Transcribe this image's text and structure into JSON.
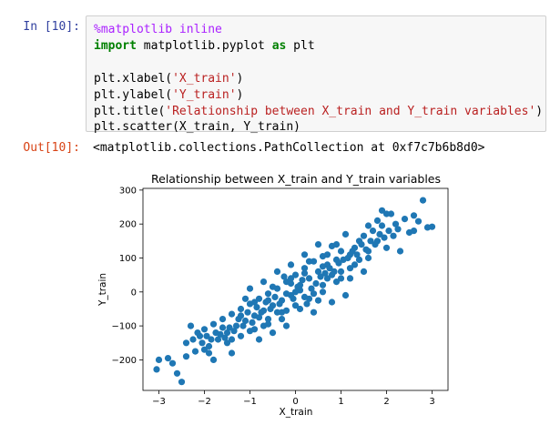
{
  "cell_in": {
    "prompt": "In [10]:",
    "code": {
      "magic": "%matplotlib inline",
      "import_kw": "import",
      "import_mod": " matplotlib.pyplot ",
      "as_kw": "as",
      "import_alias": " plt",
      "xlabel_pre": "plt.xlabel(",
      "xlabel_str": "'X_train'",
      "xlabel_post": ")",
      "ylabel_pre": "plt.ylabel(",
      "ylabel_str": "'Y_train'",
      "ylabel_post": ")",
      "title_pre": "plt.title(",
      "title_str": "'Relationship between X_train and Y_train variables'",
      "title_post": ")",
      "scatter": "plt.scatter(X_train, Y_train)"
    }
  },
  "cell_out": {
    "prompt": "Out[10]:",
    "text": "<matplotlib.collections.PathCollection at 0xf7c7b6b8d0>"
  },
  "colors": {
    "marker": "#1f77b4",
    "in_prompt": "#303f9f",
    "out_prompt": "#d84315"
  },
  "chart_data": {
    "type": "scatter",
    "title": "Relationship between X_train and Y_train variables",
    "xlabel": "X_train",
    "ylabel": "Y_train",
    "xlim": [
      -3.35,
      3.35
    ],
    "ylim": [
      -290,
      305
    ],
    "xticks": [
      "−3",
      "−2",
      "−1",
      "0",
      "1",
      "2",
      "3"
    ],
    "yticks": [
      "−200",
      "−100",
      "0",
      "100",
      "200",
      "300"
    ],
    "xtick_values": [
      -3,
      -2,
      -1,
      0,
      1,
      2,
      3
    ],
    "ytick_values": [
      -200,
      -100,
      0,
      100,
      200,
      300
    ],
    "grid": false,
    "points": [
      [
        2.8,
        270
      ],
      [
        3.0,
        192
      ],
      [
        2.7,
        208
      ],
      [
        2.6,
        225
      ],
      [
        2.4,
        215
      ],
      [
        2.2,
        200
      ],
      [
        2.1,
        230
      ],
      [
        1.9,
        240
      ],
      [
        1.8,
        210
      ],
      [
        1.7,
        180
      ],
      [
        1.5,
        165
      ],
      [
        1.6,
        195
      ],
      [
        1.4,
        150
      ],
      [
        1.3,
        130
      ],
      [
        1.2,
        110
      ],
      [
        1.1,
        170
      ],
      [
        1.0,
        120
      ],
      [
        0.9,
        95
      ],
      [
        0.8,
        135
      ],
      [
        0.7,
        80
      ],
      [
        0.6,
        105
      ],
      [
        0.5,
        60
      ],
      [
        0.4,
        90
      ],
      [
        0.3,
        40
      ],
      [
        0.2,
        70
      ],
      [
        0.1,
        20
      ],
      [
        0.0,
        50
      ],
      [
        -0.1,
        -10
      ],
      [
        -0.2,
        30
      ],
      [
        -0.3,
        -25
      ],
      [
        -0.4,
        10
      ],
      [
        -0.5,
        -40
      ],
      [
        -0.6,
        -5
      ],
      [
        -0.7,
        -55
      ],
      [
        -0.8,
        -20
      ],
      [
        -0.9,
        -70
      ],
      [
        -1.0,
        -35
      ],
      [
        -1.1,
        -85
      ],
      [
        -1.2,
        -50
      ],
      [
        -1.3,
        -100
      ],
      [
        -1.4,
        -65
      ],
      [
        -1.5,
        -120
      ],
      [
        -1.6,
        -80
      ],
      [
        -1.7,
        -140
      ],
      [
        -1.8,
        -95
      ],
      [
        -1.9,
        -160
      ],
      [
        -2.0,
        -110
      ],
      [
        -2.2,
        -175
      ],
      [
        -2.4,
        -150
      ],
      [
        -2.6,
        -240
      ],
      [
        -2.7,
        -210
      ],
      [
        -3.0,
        -200
      ],
      [
        -3.05,
        -228
      ],
      [
        -2.5,
        -265
      ],
      [
        1.5,
        60
      ],
      [
        1.2,
        40
      ],
      [
        0.9,
        30
      ],
      [
        0.6,
        0
      ],
      [
        0.3,
        -20
      ],
      [
        0.0,
        -40
      ],
      [
        -0.3,
        -60
      ],
      [
        -0.6,
        -80
      ],
      [
        -0.9,
        -110
      ],
      [
        -1.2,
        -130
      ],
      [
        -1.5,
        -150
      ],
      [
        0.5,
        140
      ],
      [
        0.2,
        110
      ],
      [
        -0.1,
        80
      ],
      [
        -0.4,
        60
      ],
      [
        -0.7,
        30
      ],
      [
        -1.0,
        10
      ],
      [
        1.8,
        150
      ],
      [
        2.0,
        130
      ],
      [
        2.3,
        120
      ],
      [
        1.6,
        100
      ],
      [
        0.8,
        -30
      ],
      [
        0.4,
        -60
      ],
      [
        -0.2,
        -100
      ],
      [
        -0.5,
        -120
      ],
      [
        -0.8,
        -140
      ],
      [
        1.0,
        60
      ],
      [
        1.3,
        80
      ],
      [
        0.7,
        40
      ],
      [
        -1.8,
        -200
      ],
      [
        -2.1,
        -130
      ],
      [
        -1.4,
        -180
      ],
      [
        -0.2,
        -5
      ],
      [
        0.1,
        5
      ],
      [
        0.2,
        -15
      ],
      [
        -0.1,
        25
      ],
      [
        0.05,
        15
      ],
      [
        -0.05,
        -20
      ],
      [
        0.15,
        35
      ],
      [
        0.35,
        10
      ],
      [
        -0.35,
        -35
      ],
      [
        0.45,
        25
      ],
      [
        -0.45,
        -15
      ],
      [
        0.55,
        45
      ],
      [
        -0.55,
        -50
      ],
      [
        0.65,
        55
      ],
      [
        -0.65,
        -30
      ],
      [
        0.75,
        70
      ],
      [
        -0.75,
        -60
      ],
      [
        0.85,
        60
      ],
      [
        -0.85,
        -45
      ],
      [
        0.95,
        85
      ],
      [
        -0.95,
        -90
      ],
      [
        1.05,
        95
      ],
      [
        -1.05,
        -60
      ],
      [
        1.15,
        100
      ],
      [
        -1.15,
        -100
      ],
      [
        1.25,
        120
      ],
      [
        -1.25,
        -80
      ],
      [
        1.35,
        110
      ],
      [
        -1.35,
        -115
      ],
      [
        1.45,
        140
      ],
      [
        -1.45,
        -105
      ],
      [
        1.55,
        125
      ],
      [
        -1.55,
        -135
      ],
      [
        1.65,
        150
      ],
      [
        -1.65,
        -125
      ],
      [
        1.75,
        140
      ],
      [
        -1.75,
        -120
      ],
      [
        1.85,
        170
      ],
      [
        -1.85,
        -140
      ],
      [
        1.95,
        160
      ],
      [
        -1.95,
        -130
      ],
      [
        2.05,
        180
      ],
      [
        -2.05,
        -150
      ],
      [
        2.15,
        165
      ],
      [
        -2.15,
        -120
      ],
      [
        2.25,
        185
      ],
      [
        -2.25,
        -140
      ],
      [
        2.5,
        175
      ],
      [
        -2.3,
        -100
      ],
      [
        0.25,
        -35
      ],
      [
        -0.25,
        45
      ],
      [
        0.4,
        -5
      ],
      [
        -0.4,
        -60
      ],
      [
        0.6,
        20
      ],
      [
        -0.6,
        -95
      ],
      [
        0.8,
        50
      ],
      [
        -0.8,
        -75
      ],
      [
        1.0,
        40
      ],
      [
        -1.0,
        -115
      ],
      [
        1.2,
        70
      ],
      [
        -1.2,
        -70
      ],
      [
        1.4,
        95
      ],
      [
        -1.4,
        -140
      ],
      [
        0.3,
        90
      ],
      [
        -0.3,
        -80
      ],
      [
        0.1,
        -50
      ],
      [
        -0.1,
        40
      ],
      [
        0.5,
        -25
      ],
      [
        -0.5,
        15
      ],
      [
        0.7,
        110
      ],
      [
        -0.7,
        -100
      ],
      [
        0.9,
        140
      ],
      [
        -0.9,
        -30
      ],
      [
        1.1,
        -10
      ],
      [
        -1.1,
        -20
      ],
      [
        0.0,
        0
      ],
      [
        0.2,
        55
      ],
      [
        -0.2,
        -55
      ],
      [
        0.6,
        75
      ],
      [
        -0.6,
        -25
      ],
      [
        1.6,
        120
      ],
      [
        -1.6,
        -105
      ],
      [
        1.9,
        195
      ],
      [
        -1.9,
        -180
      ],
      [
        2.0,
        230
      ],
      [
        -2.0,
        -170
      ],
      [
        -2.4,
        -190
      ],
      [
        2.6,
        180
      ],
      [
        -2.8,
        -195
      ],
      [
        2.9,
        190
      ]
    ]
  }
}
